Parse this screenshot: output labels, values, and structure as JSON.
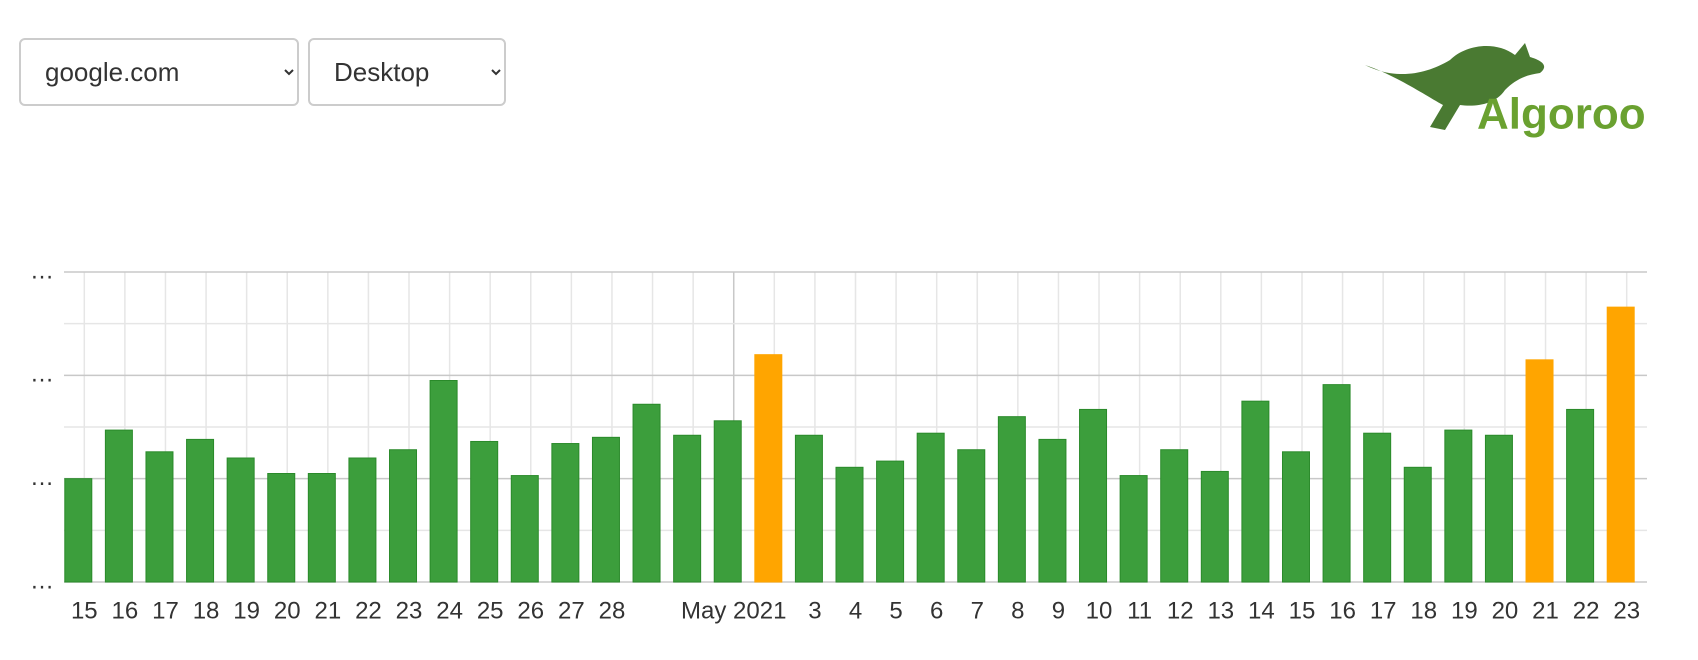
{
  "controls": {
    "site": "google.com",
    "device": "Desktop"
  },
  "logo": "Algoroo",
  "chart_data": {
    "type": "bar",
    "categories": [
      "15",
      "16",
      "17",
      "18",
      "19",
      "20",
      "21",
      "22",
      "23",
      "24",
      "25",
      "26",
      "27",
      "28",
      null,
      null,
      "May 2021",
      null,
      "3",
      "4",
      "5",
      "6",
      "7",
      "8",
      "9",
      "10",
      "11",
      "12",
      "13",
      "14",
      "15",
      "16",
      "17",
      "18",
      "19",
      "20",
      "21",
      "22",
      "23"
    ],
    "values": [
      1.0,
      1.47,
      1.26,
      1.38,
      1.2,
      1.05,
      1.05,
      1.2,
      1.28,
      1.95,
      1.36,
      1.03,
      1.34,
      1.4,
      1.72,
      1.42,
      1.56,
      2.2,
      1.42,
      1.11,
      1.17,
      1.44,
      1.28,
      1.6,
      1.38,
      1.67,
      1.03,
      1.28,
      1.07,
      1.75,
      1.26,
      1.91,
      1.44,
      1.11,
      1.47,
      1.42,
      2.15,
      1.67,
      2.66
    ],
    "colors": [
      "#3c9e3c",
      "#3c9e3c",
      "#3c9e3c",
      "#3c9e3c",
      "#3c9e3c",
      "#3c9e3c",
      "#3c9e3c",
      "#3c9e3c",
      "#3c9e3c",
      "#3c9e3c",
      "#3c9e3c",
      "#3c9e3c",
      "#3c9e3c",
      "#3c9e3c",
      "#3c9e3c",
      "#3c9e3c",
      "#3c9e3c",
      "#ffa500",
      "#3c9e3c",
      "#3c9e3c",
      "#3c9e3c",
      "#3c9e3c",
      "#3c9e3c",
      "#3c9e3c",
      "#3c9e3c",
      "#3c9e3c",
      "#3c9e3c",
      "#3c9e3c",
      "#3c9e3c",
      "#3c9e3c",
      "#3c9e3c",
      "#3c9e3c",
      "#3c9e3c",
      "#3c9e3c",
      "#3c9e3c",
      "#3c9e3c",
      "#ffa500",
      "#3c9e3c",
      "#ffa500"
    ],
    "ylim": [
      0,
      3
    ],
    "yticks": [
      {
        "value": 0,
        "label": "…"
      },
      {
        "value": 1,
        "label": "…"
      },
      {
        "value": 2,
        "label": "…"
      },
      {
        "value": 3,
        "label": "…"
      }
    ],
    "grid": true
  }
}
